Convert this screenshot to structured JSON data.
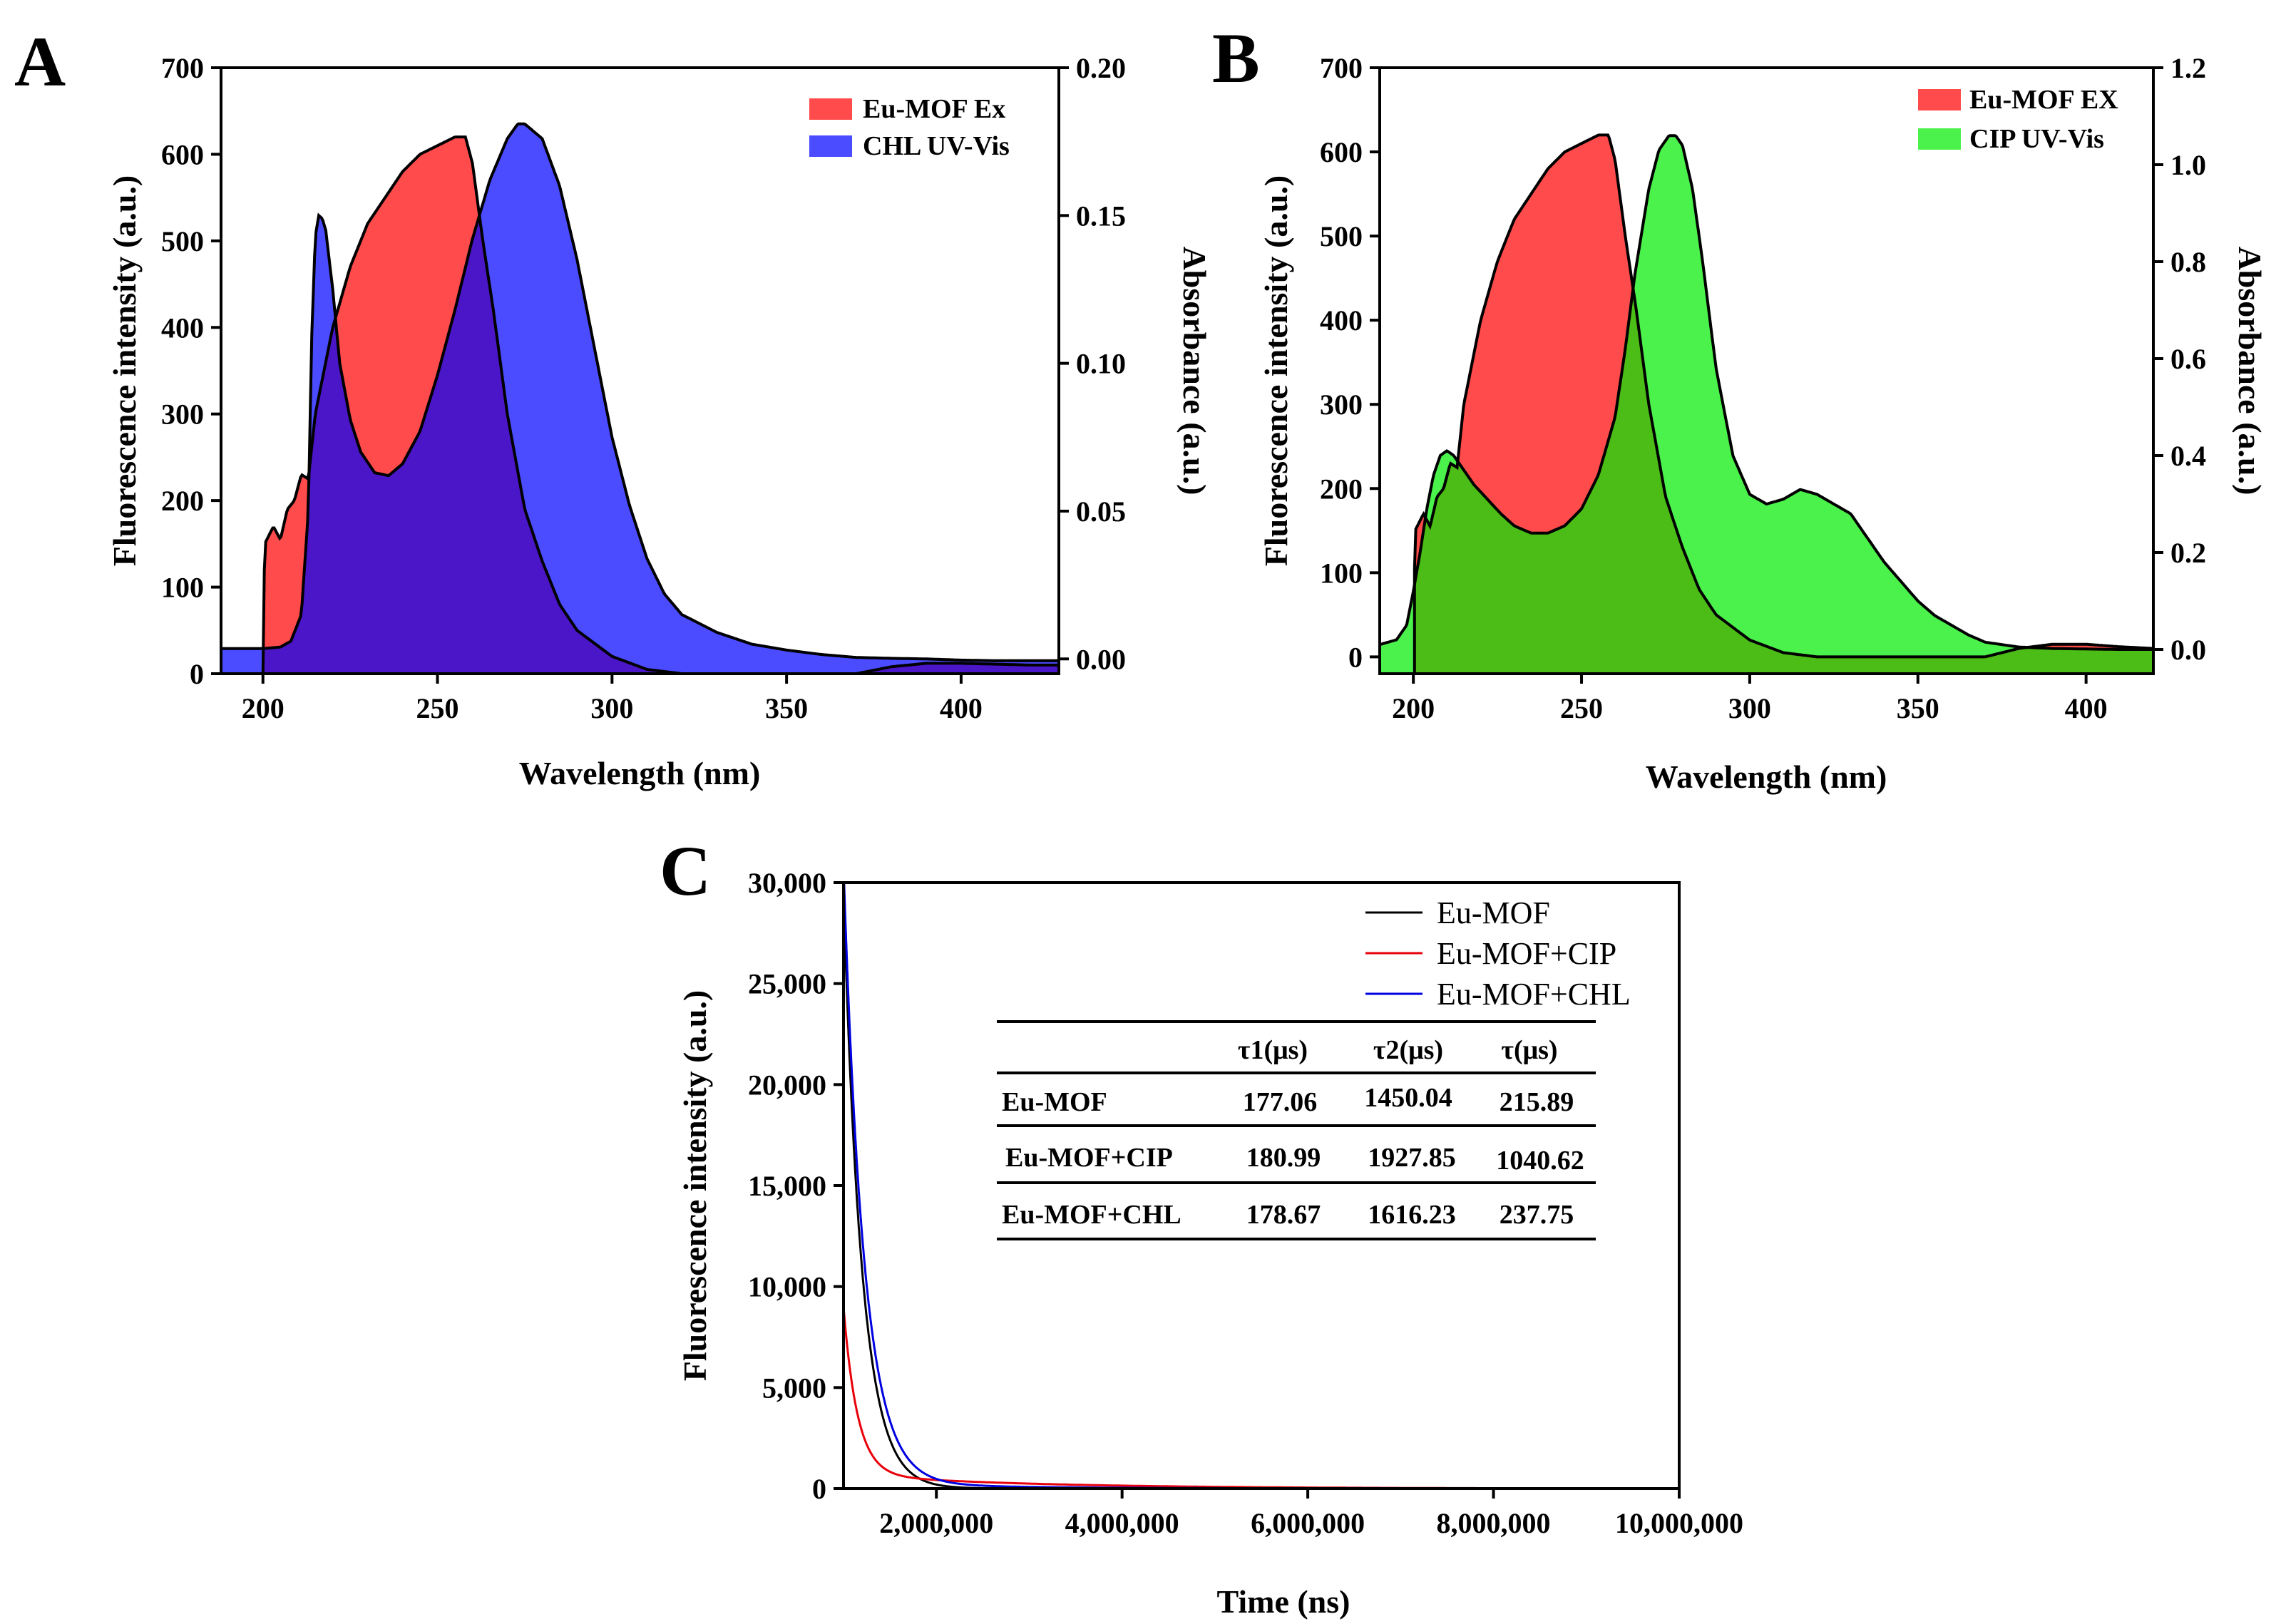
{
  "chart_data": [
    {
      "id": "A",
      "type": "area",
      "panel_label": "A",
      "xlabel": "Wavelength (nm)",
      "ylabel": "Fluorescence intensity (a.u.)",
      "ylabel_right": "Absorbance (a.u.)",
      "xlim": [
        188,
        428
      ],
      "ylim": [
        0,
        700
      ],
      "ylim_right": [
        -0.005,
        0.2
      ],
      "x_ticks": [
        "200",
        "250",
        "300",
        "350",
        "400"
      ],
      "y_ticks": [
        "0",
        "100",
        "200",
        "300",
        "400",
        "500",
        "600",
        "700"
      ],
      "y_ticks_right": [
        "0.00",
        "0.05",
        "0.10",
        "0.15",
        "0.20"
      ],
      "legend": [
        "Eu-MOF Ex",
        "CHL UV-Vis"
      ],
      "colors": {
        "fluor": "#ff4b4b",
        "abs": "#4b4bff",
        "overlap": "#4a16c8"
      },
      "series": [
        {
          "name": "Eu-MOF Ex",
          "axis": "left",
          "x": [
            200,
            200.5,
            203,
            205,
            207,
            209,
            211,
            213,
            215,
            217,
            220,
            225,
            230,
            235,
            240,
            245,
            250,
            255,
            258,
            260,
            263,
            266,
            270,
            275,
            280,
            285,
            290,
            300,
            310,
            320,
            330,
            340,
            350,
            360,
            370,
            380,
            390,
            400,
            420,
            428
          ],
          "y": [
            0,
            150,
            170,
            155,
            190,
            200,
            230,
            225,
            300,
            340,
            400,
            470,
            520,
            550,
            580,
            600,
            610,
            620,
            620,
            590,
            500,
            420,
            300,
            190,
            130,
            80,
            50,
            20,
            5,
            0,
            0,
            0,
            0,
            0,
            0,
            8,
            12,
            12,
            10,
            10
          ]
        },
        {
          "name": "CHL UV-Vis",
          "axis": "right",
          "x": [
            188,
            190,
            200,
            205,
            208,
            211,
            213,
            214,
            215,
            216,
            217,
            218,
            220,
            222,
            225,
            228,
            232,
            236,
            240,
            245,
            250,
            255,
            260,
            265,
            270,
            273,
            275,
            280,
            285,
            290,
            295,
            300,
            305,
            310,
            315,
            320,
            330,
            340,
            350,
            360,
            370,
            380,
            390,
            400,
            410,
            420,
            428
          ],
          "y": [
            0.0035,
            0.0035,
            0.0035,
            0.004,
            0.006,
            0.015,
            0.05,
            0.11,
            0.143,
            0.15,
            0.149,
            0.145,
            0.125,
            0.1,
            0.081,
            0.07,
            0.063,
            0.062,
            0.066,
            0.077,
            0.096,
            0.118,
            0.142,
            0.162,
            0.176,
            0.181,
            0.181,
            0.176,
            0.16,
            0.135,
            0.105,
            0.075,
            0.052,
            0.034,
            0.022,
            0.015,
            0.009,
            0.005,
            0.003,
            0.0015,
            0.0005,
            0.0002,
            0,
            -0.0004,
            -0.0006,
            -0.0006,
            -0.0006
          ]
        }
      ]
    },
    {
      "id": "B",
      "type": "area",
      "panel_label": "B",
      "xlabel": "Wavelength (nm)",
      "ylabel": "Fluorescence intensity (a.u.)",
      "ylabel_right": "Absorbance (a.u.)",
      "xlim": [
        190,
        420
      ],
      "ylim": [
        -20,
        700
      ],
      "ylim_right": [
        -0.05,
        1.2
      ],
      "x_ticks": [
        "200",
        "250",
        "300",
        "350",
        "400"
      ],
      "y_ticks": [
        "0",
        "100",
        "200",
        "300",
        "400",
        "500",
        "600",
        "700"
      ],
      "y_ticks_right": [
        "0.0",
        "0.2",
        "0.4",
        "0.6",
        "0.8",
        "1.0",
        "1.2"
      ],
      "legend": [
        "Eu-MOF EX",
        "CIP UV-Vis"
      ],
      "colors": {
        "fluor": "#ff4b4b",
        "abs": "#4bf24b",
        "overlap": "#4bbd16"
      },
      "series": [
        {
          "name": "Eu-MOF EX",
          "axis": "left",
          "x": [
            200,
            200.5,
            203,
            205,
            207,
            209,
            211,
            213,
            215,
            217,
            220,
            225,
            230,
            235,
            240,
            245,
            250,
            255,
            258,
            260,
            263,
            266,
            270,
            275,
            280,
            285,
            290,
            300,
            310,
            320,
            330,
            340,
            350,
            360,
            370,
            380,
            390,
            400,
            410,
            420
          ],
          "y": [
            0,
            150,
            170,
            155,
            190,
            200,
            230,
            225,
            300,
            340,
            400,
            470,
            520,
            550,
            580,
            600,
            610,
            620,
            620,
            590,
            500,
            420,
            300,
            190,
            130,
            80,
            50,
            20,
            5,
            0,
            0,
            0,
            0,
            0,
            0,
            10,
            15,
            15,
            12,
            10
          ]
        },
        {
          "name": "CIP UV-Vis",
          "axis": "right",
          "x": [
            190,
            195,
            198,
            200,
            202,
            204,
            206,
            208,
            210,
            212,
            215,
            218,
            222,
            226,
            230,
            235,
            240,
            245,
            250,
            255,
            260,
            263,
            266,
            270,
            273,
            276,
            278,
            280,
            283,
            286,
            290,
            295,
            300,
            305,
            310,
            315,
            320,
            325,
            330,
            335,
            340,
            345,
            350,
            355,
            360,
            365,
            370,
            380,
            390,
            400,
            410,
            420
          ],
          "y": [
            0.01,
            0.02,
            0.05,
            0.12,
            0.2,
            0.29,
            0.36,
            0.4,
            0.41,
            0.4,
            0.37,
            0.34,
            0.31,
            0.28,
            0.255,
            0.24,
            0.24,
            0.255,
            0.29,
            0.36,
            0.48,
            0.62,
            0.78,
            0.95,
            1.03,
            1.06,
            1.06,
            1.04,
            0.95,
            0.8,
            0.58,
            0.4,
            0.32,
            0.3,
            0.31,
            0.33,
            0.32,
            0.3,
            0.28,
            0.23,
            0.18,
            0.14,
            0.1,
            0.07,
            0.05,
            0.03,
            0.015,
            0.005,
            0.002,
            0.001,
            0,
            0
          ]
        }
      ]
    },
    {
      "id": "C",
      "type": "line",
      "panel_label": "C",
      "xlabel": "Time (ns)",
      "ylabel": "Fluorescence intensity (a.u.)",
      "xlim": [
        1000000,
        10000000
      ],
      "ylim": [
        0,
        30000
      ],
      "x_ticks": [
        "2,000,000",
        "4,000,000",
        "6,000,000",
        "8,000,000",
        "10,000,000"
      ],
      "y_ticks": [
        "0",
        "5,000",
        "10,000",
        "15,000",
        "20,000",
        "25,000",
        "30,000"
      ],
      "legend": [
        "Eu-MOF",
        "Eu-MOF+CIP",
        "Eu-MOF+CHL"
      ],
      "colors": [
        "#000000",
        "#e8000b",
        "#0000e0"
      ],
      "series": [
        {
          "name": "Eu-MOF",
          "t0": 1000000,
          "amp": 29500,
          "tau": 200000,
          "amp2": 0,
          "tau2": 1
        },
        {
          "name": "Eu-MOF+CIP",
          "t0": 1000000,
          "amp": 8300,
          "tau": 150000,
          "amp2": 700,
          "tau2": 1900000
        },
        {
          "name": "Eu-MOF+CHL",
          "t0": 1000000,
          "amp": 30500,
          "tau": 220000,
          "amp2": 300,
          "tau2": 1500000
        }
      ],
      "table": {
        "headers": [
          "",
          "τ1(μs)",
          "τ2(μs)",
          "τ(μs)"
        ],
        "rows": [
          [
            "Eu-MOF",
            "177.06",
            "1450.04",
            "215.89"
          ],
          [
            "Eu-MOF+CIP",
            "180.99",
            "1927.85",
            "1040.62"
          ],
          [
            "Eu-MOF+CHL",
            "178.67",
            "1616.23",
            "237.75"
          ]
        ]
      }
    }
  ]
}
